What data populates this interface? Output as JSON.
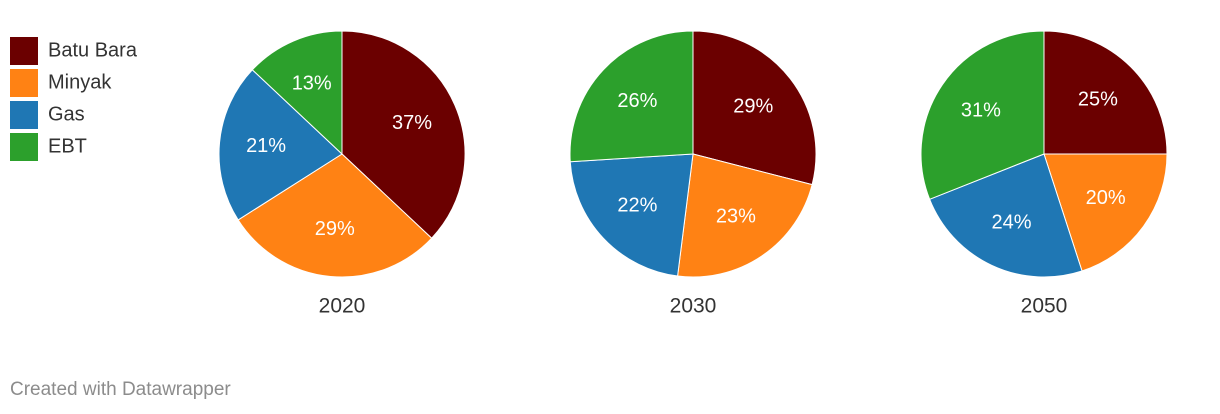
{
  "chart_data": {
    "type": "pie",
    "categories": [
      "Batu Bara",
      "Minyak",
      "Gas",
      "EBT"
    ],
    "colors": [
      "#6b0000",
      "#ff8214",
      "#1f77b4",
      "#2ca02c"
    ],
    "series": [
      {
        "name": "2020",
        "values": [
          37,
          29,
          21,
          13
        ],
        "value_labels": [
          "37%",
          "29%",
          "21%",
          "13%"
        ]
      },
      {
        "name": "2030",
        "values": [
          29,
          23,
          22,
          26
        ],
        "value_labels": [
          "29%",
          "23%",
          "22%",
          "26%"
        ]
      },
      {
        "name": "2050",
        "values": [
          25,
          20,
          24,
          31
        ],
        "value_labels": [
          "25%",
          "20%",
          "24%",
          "31%"
        ]
      }
    ],
    "legend": "top-left"
  },
  "footer": "Created with Datawrapper"
}
